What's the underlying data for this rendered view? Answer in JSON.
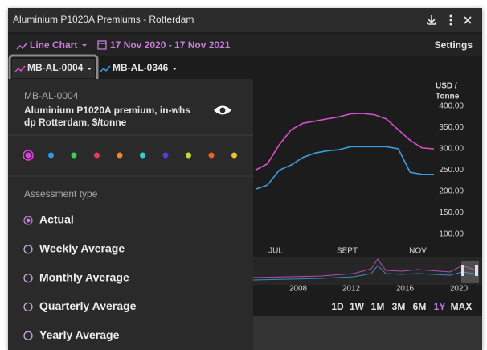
{
  "window": {
    "title": "Aluminium P1020A Premiums - Rotterdam"
  },
  "toolbar": {
    "chart_type": "Line Chart",
    "date_range": "17 Nov 2020 - 17 Nov 2021",
    "settings": "Settings"
  },
  "panel": {
    "code": "MB-AL-0004",
    "description_lines": [
      "Aluminium P1020A premium, in-whs",
      "dp Rotterdam, $/tonne"
    ],
    "colors": [
      "#e040e0",
      "#2f9ae8",
      "#3ccf4e",
      "#e83a5a",
      "#f08a28",
      "#2ed0d0",
      "#5b3cd8",
      "#c8d82a",
      "#e8642a",
      "#e8c42a"
    ],
    "section_label": "Assessment type",
    "options": [
      "Actual",
      "Weekly Average",
      "Monthly Average",
      "Quarterly Average",
      "Yearly Average"
    ],
    "selected_option": 0
  },
  "chart_data": {
    "type": "line",
    "y_axis_label": [
      "USD /",
      "Tonne"
    ],
    "x_labels": [
      "JUL",
      "SEPT",
      "NOV"
    ],
    "series": [
      {
        "name": "MB-AL-0004",
        "color": "#d94fd0",
        "values": [
          250,
          265,
          310,
          345,
          360,
          365,
          370,
          375,
          382,
          383,
          380,
          370,
          345,
          320,
          302,
          300
        ]
      },
      {
        "name": "MB-AL-0346",
        "color": "#3a9ee0",
        "values": [
          205,
          215,
          250,
          262,
          280,
          290,
          295,
          298,
          305,
          305,
          305,
          305,
          300,
          245,
          240,
          240
        ]
      }
    ],
    "ylim": [
      100,
      400
    ],
    "yticks": [
      {
        "value": 100,
        "label": "100.00"
      },
      {
        "value": 150,
        "label": "150.00"
      },
      {
        "value": 200,
        "label": "200.00"
      },
      {
        "value": 250,
        "label": "250.00"
      },
      {
        "value": 300,
        "label": "300.00"
      },
      {
        "value": 350,
        "label": "350.00"
      },
      {
        "value": 400,
        "label": "400.00"
      }
    ],
    "navigator_labels": [
      "2008",
      "2012",
      "2016",
      "2020"
    ],
    "ranges": [
      "1D",
      "1W",
      "1M",
      "3M",
      "6M",
      "1Y",
      "MAX"
    ],
    "active_range": 5
  }
}
